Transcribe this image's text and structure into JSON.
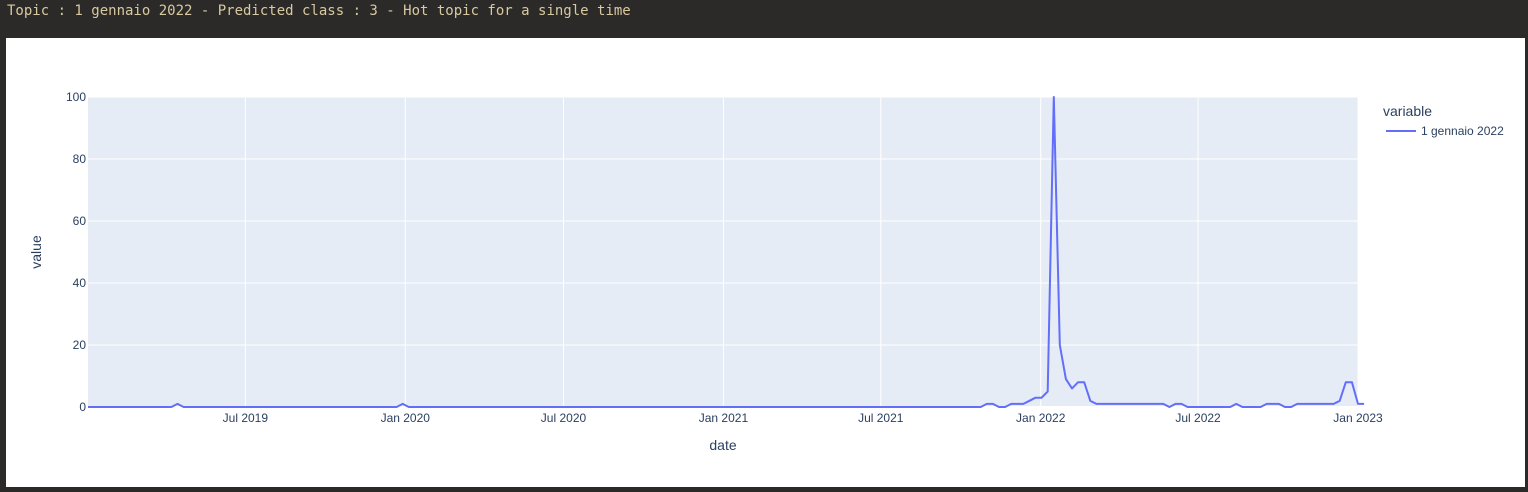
{
  "header": {
    "title": "Topic : 1 gennaio 2022 - Predicted class : 3 - Hot topic for a single time"
  },
  "chart_data": {
    "type": "line",
    "title": "",
    "xlabel": "date",
    "ylabel": "value",
    "x_range": [
      "2019-01-01",
      "2023-01-01"
    ],
    "ylim": [
      0,
      100
    ],
    "grid": true,
    "plot_background": "#e5ecf6",
    "legend": {
      "title": "variable",
      "placement": "right"
    },
    "x_ticks": [
      {
        "date": "2019-07-01",
        "label": "Jul 2019"
      },
      {
        "date": "2020-01-01",
        "label": "Jan 2020"
      },
      {
        "date": "2020-07-01",
        "label": "Jul 2020"
      },
      {
        "date": "2021-01-01",
        "label": "Jan 2021"
      },
      {
        "date": "2021-07-01",
        "label": "Jul 2021"
      },
      {
        "date": "2022-01-01",
        "label": "Jan 2022"
      },
      {
        "date": "2022-07-01",
        "label": "Jul 2022"
      },
      {
        "date": "2023-01-01",
        "label": "Jan 2023"
      }
    ],
    "y_ticks": [
      0,
      20,
      40,
      60,
      80,
      100
    ],
    "series": [
      {
        "name": "1 gennaio 2022",
        "color": "#636efa",
        "x": [
          "2019-01-01",
          "2019-04-07",
          "2019-04-14",
          "2019-04-21",
          "2019-12-22",
          "2019-12-29",
          "2020-01-05",
          "2021-10-24",
          "2021-10-31",
          "2021-11-07",
          "2021-11-14",
          "2021-11-21",
          "2021-11-28",
          "2021-12-05",
          "2021-12-12",
          "2021-12-19",
          "2021-12-26",
          "2022-01-02",
          "2022-01-09",
          "2022-01-16",
          "2022-01-23",
          "2022-01-30",
          "2022-02-06",
          "2022-02-13",
          "2022-02-20",
          "2022-02-27",
          "2022-03-06",
          "2022-05-22",
          "2022-05-29",
          "2022-06-05",
          "2022-06-12",
          "2022-06-19",
          "2022-08-07",
          "2022-08-14",
          "2022-08-21",
          "2022-09-11",
          "2022-09-18",
          "2022-10-02",
          "2022-10-09",
          "2022-10-16",
          "2022-10-23",
          "2022-11-06",
          "2022-12-04",
          "2022-12-11",
          "2022-12-18",
          "2022-12-25",
          "2023-01-01",
          "2023-01-08"
        ],
        "y": [
          0,
          0,
          1,
          0,
          0,
          1,
          0,
          0,
          1,
          1,
          0,
          0,
          1,
          1,
          1,
          2,
          3,
          3,
          5,
          100,
          20,
          9,
          6,
          8,
          8,
          2,
          1,
          1,
          0,
          1,
          1,
          0,
          0,
          1,
          0,
          0,
          1,
          1,
          0,
          0,
          1,
          1,
          1,
          2,
          8,
          8,
          1,
          1
        ]
      }
    ]
  }
}
